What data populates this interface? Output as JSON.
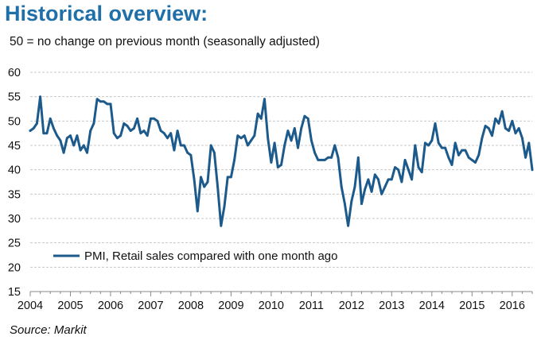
{
  "header": {
    "title": "Historical overview:",
    "subtitle": "50 = no change on previous month (seasonally adjusted)"
  },
  "footer": {
    "source": "Source: Markit"
  },
  "colors": {
    "series": "#1d5a8c",
    "grid": "#c8c8c8",
    "axis": "#888888",
    "title": "#1f6fa8"
  },
  "chart_data": {
    "type": "line",
    "title": "Historical overview:",
    "subtitle": "50 = no change on previous month (seasonally adjusted)",
    "xlabel": "",
    "ylabel": "",
    "xlim": [
      2004.0,
      2016.5
    ],
    "ylim": [
      15,
      60
    ],
    "yticks": [
      15,
      20,
      25,
      30,
      35,
      40,
      45,
      50,
      55,
      60
    ],
    "xticks": [
      "2004",
      "2005",
      "2006",
      "2007",
      "2008",
      "2009",
      "2010",
      "2011",
      "2012",
      "2013",
      "2014",
      "2015",
      "2016"
    ],
    "grid": true,
    "legend": {
      "position": "bottom-left",
      "entries": [
        "PMI, Retail sales compared with one month ago"
      ]
    },
    "series": [
      {
        "name": "PMI, Retail sales compared with one month ago",
        "start": "2004-01",
        "frequency": "monthly",
        "values": [
          48.0,
          48.5,
          49.5,
          55.0,
          47.5,
          47.5,
          50.5,
          48.5,
          47.0,
          46.0,
          43.5,
          46.5,
          47.0,
          45.0,
          47.0,
          44.0,
          45.0,
          43.5,
          48.0,
          49.5,
          54.5,
          54.0,
          54.0,
          53.5,
          53.5,
          47.5,
          46.5,
          47.0,
          49.5,
          49.0,
          48.0,
          48.5,
          50.5,
          47.5,
          48.0,
          47.0,
          50.5,
          50.5,
          50.0,
          48.0,
          47.5,
          46.5,
          47.5,
          44.0,
          48.0,
          45.0,
          45.0,
          43.5,
          43.0,
          38.0,
          31.5,
          38.5,
          36.5,
          37.5,
          45.0,
          43.5,
          36.5,
          28.5,
          32.5,
          38.5,
          38.5,
          42.0,
          47.0,
          46.5,
          47.0,
          45.0,
          46.0,
          47.0,
          51.5,
          50.5,
          54.5,
          46.5,
          41.5,
          45.5,
          40.5,
          41.0,
          45.0,
          48.0,
          46.0,
          48.5,
          44.5,
          48.5,
          51.0,
          50.5,
          46.0,
          43.5,
          42.0,
          42.0,
          42.0,
          42.5,
          42.5,
          45.0,
          42.5,
          36.5,
          33.0,
          28.5,
          33.5,
          36.5,
          42.5,
          33.0,
          36.0,
          38.0,
          35.5,
          39.0,
          38.0,
          35.0,
          36.5,
          38.0,
          38.0,
          40.5,
          40.0,
          37.5,
          42.0,
          40.0,
          38.0,
          45.0,
          40.5,
          39.5,
          45.5,
          45.0,
          46.0,
          49.5,
          45.5,
          44.5,
          44.5,
          42.5,
          41.0,
          45.5,
          43.0,
          44.0,
          44.0,
          42.5,
          42.0,
          41.5,
          43.0,
          46.5,
          49.0,
          48.5,
          47.0,
          50.5,
          49.5,
          52.0,
          48.5,
          48.0,
          50.0,
          47.5,
          48.5,
          46.5,
          42.5,
          45.5,
          40.0
        ]
      }
    ]
  }
}
